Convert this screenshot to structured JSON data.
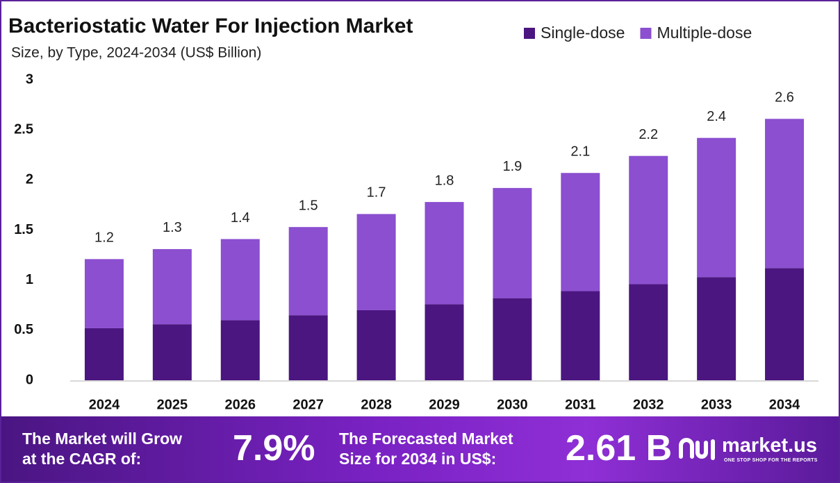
{
  "chart_data": {
    "type": "stacked-bar",
    "title": "Bacteriostatic  Water For Injection Market",
    "subtitle": "Size, by Type, 2024-2034 (US$ Billion)",
    "categories": [
      "2024",
      "2025",
      "2026",
      "2027",
      "2028",
      "2029",
      "2030",
      "2031",
      "2032",
      "2033",
      "2034"
    ],
    "series": [
      {
        "name": "Single-dose",
        "color": "#4b1680",
        "values": [
          0.52,
          0.56,
          0.6,
          0.65,
          0.7,
          0.76,
          0.82,
          0.89,
          0.96,
          1.03,
          1.12
        ]
      },
      {
        "name": "Multiple-dose",
        "color": "#8b4fd0",
        "values": [
          0.69,
          0.75,
          0.81,
          0.88,
          0.96,
          1.02,
          1.1,
          1.18,
          1.28,
          1.39,
          1.49
        ]
      }
    ],
    "totals": [
      1.21,
      1.31,
      1.41,
      1.53,
      1.66,
      1.78,
      1.92,
      2.07,
      2.24,
      2.42,
      2.61
    ],
    "total_labels": [
      "1.2",
      "1.3",
      "1.4",
      "1.5",
      "1.7",
      "1.8",
      "1.9",
      "2.1",
      "2.2",
      "2.4",
      "2.6"
    ],
    "ylim": [
      0,
      3
    ],
    "yticks": [
      0,
      0.5,
      1,
      1.5,
      2,
      2.5,
      3
    ],
    "grid": false,
    "legend": "top-right"
  },
  "footer": {
    "cagr_text_1": "The Market will Grow",
    "cagr_text_2": "at the CAGR of:",
    "cagr_value": "7.9%",
    "forecast_text_1": "The Forecasted Market",
    "forecast_text_2": "Size for 2034 in US$:",
    "forecast_value": "2.61 B",
    "brand": "market.us",
    "tagline": "ONE STOP SHOP FOR THE REPORTS"
  }
}
